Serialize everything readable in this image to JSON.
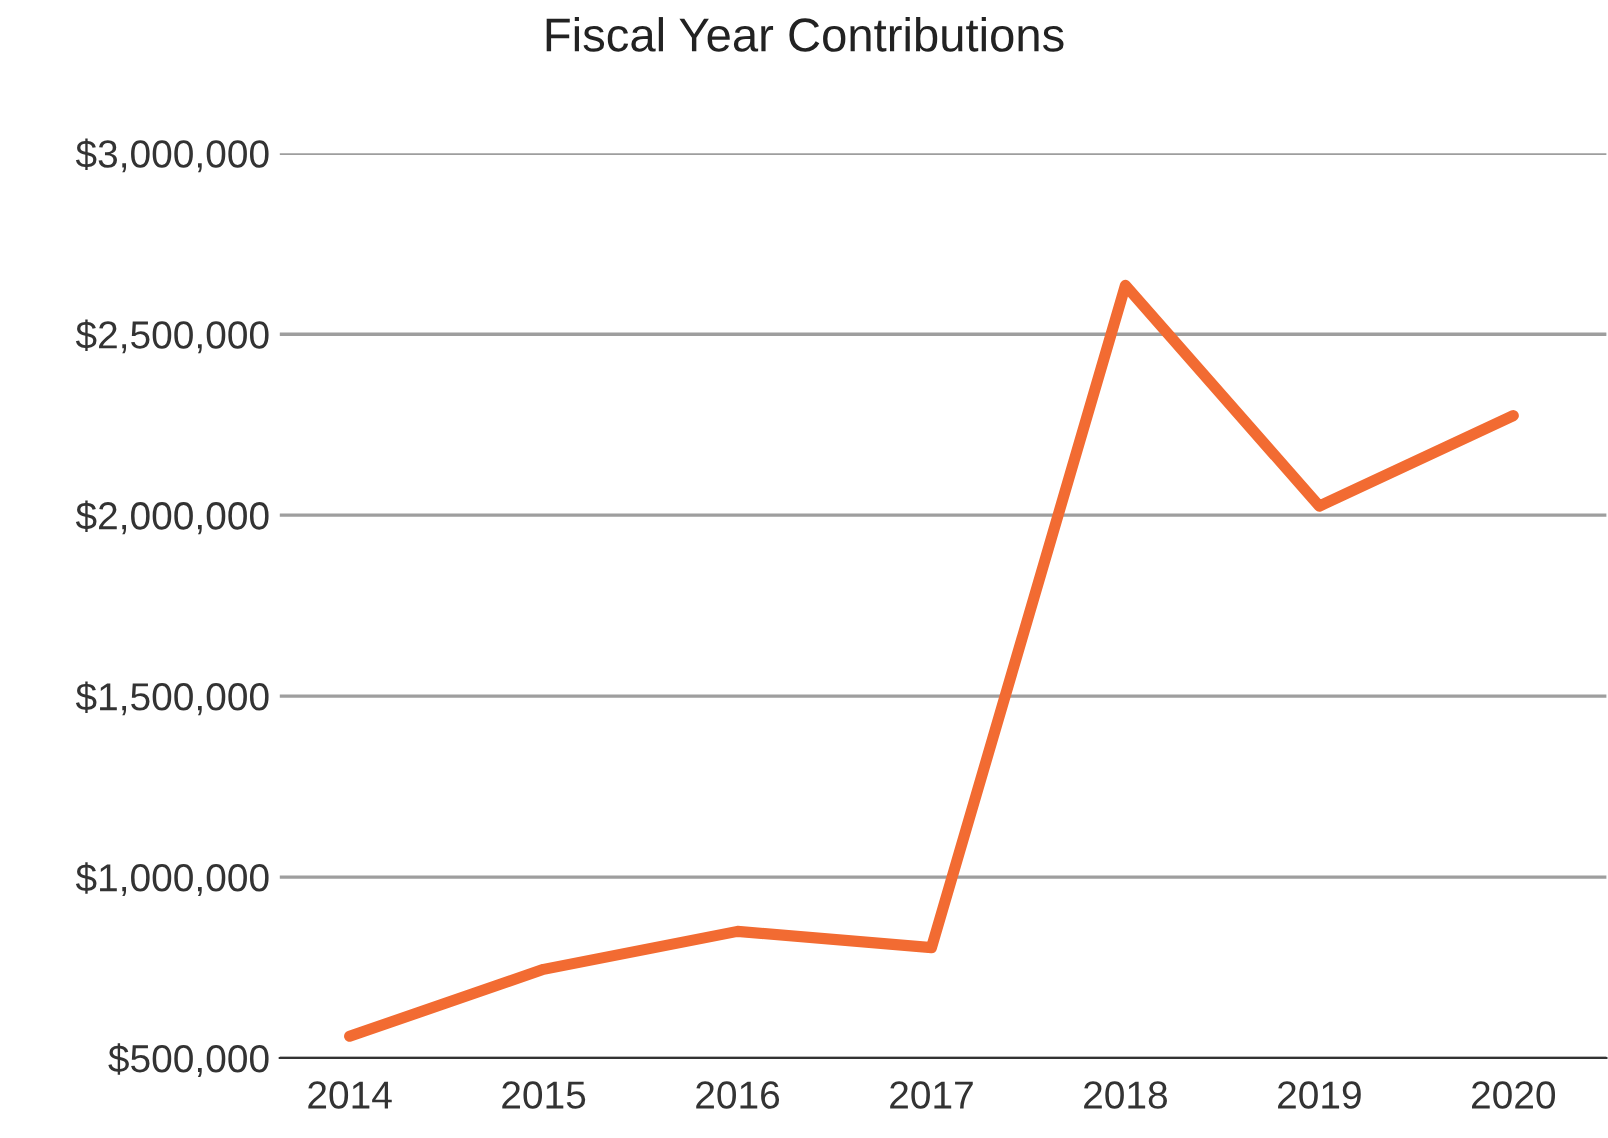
{
  "chart_data": {
    "type": "line",
    "title": "Fiscal Year Contributions",
    "categories": [
      "2014",
      "2015",
      "2016",
      "2017",
      "2018",
      "2019",
      "2020"
    ],
    "series": [
      {
        "color": "#f26b32",
        "values": [
          560000,
          745000,
          850000,
          805000,
          2635000,
          2025000,
          2275000
        ]
      }
    ],
    "ylim": [
      500000,
      3000000
    ],
    "yticks": [
      {
        "value": 500000,
        "label": "$500,000"
      },
      {
        "value": 1000000,
        "label": "$1,000,000"
      },
      {
        "value": 1500000,
        "label": "$1,500,000"
      },
      {
        "value": 2000000,
        "label": "$2,000,000"
      },
      {
        "value": 2500000,
        "label": "$2,500,000"
      },
      {
        "value": 3000000,
        "label": "$3,000,000"
      }
    ],
    "grid": "y",
    "marker": "none",
    "line_style": "solid",
    "legend": false
  }
}
